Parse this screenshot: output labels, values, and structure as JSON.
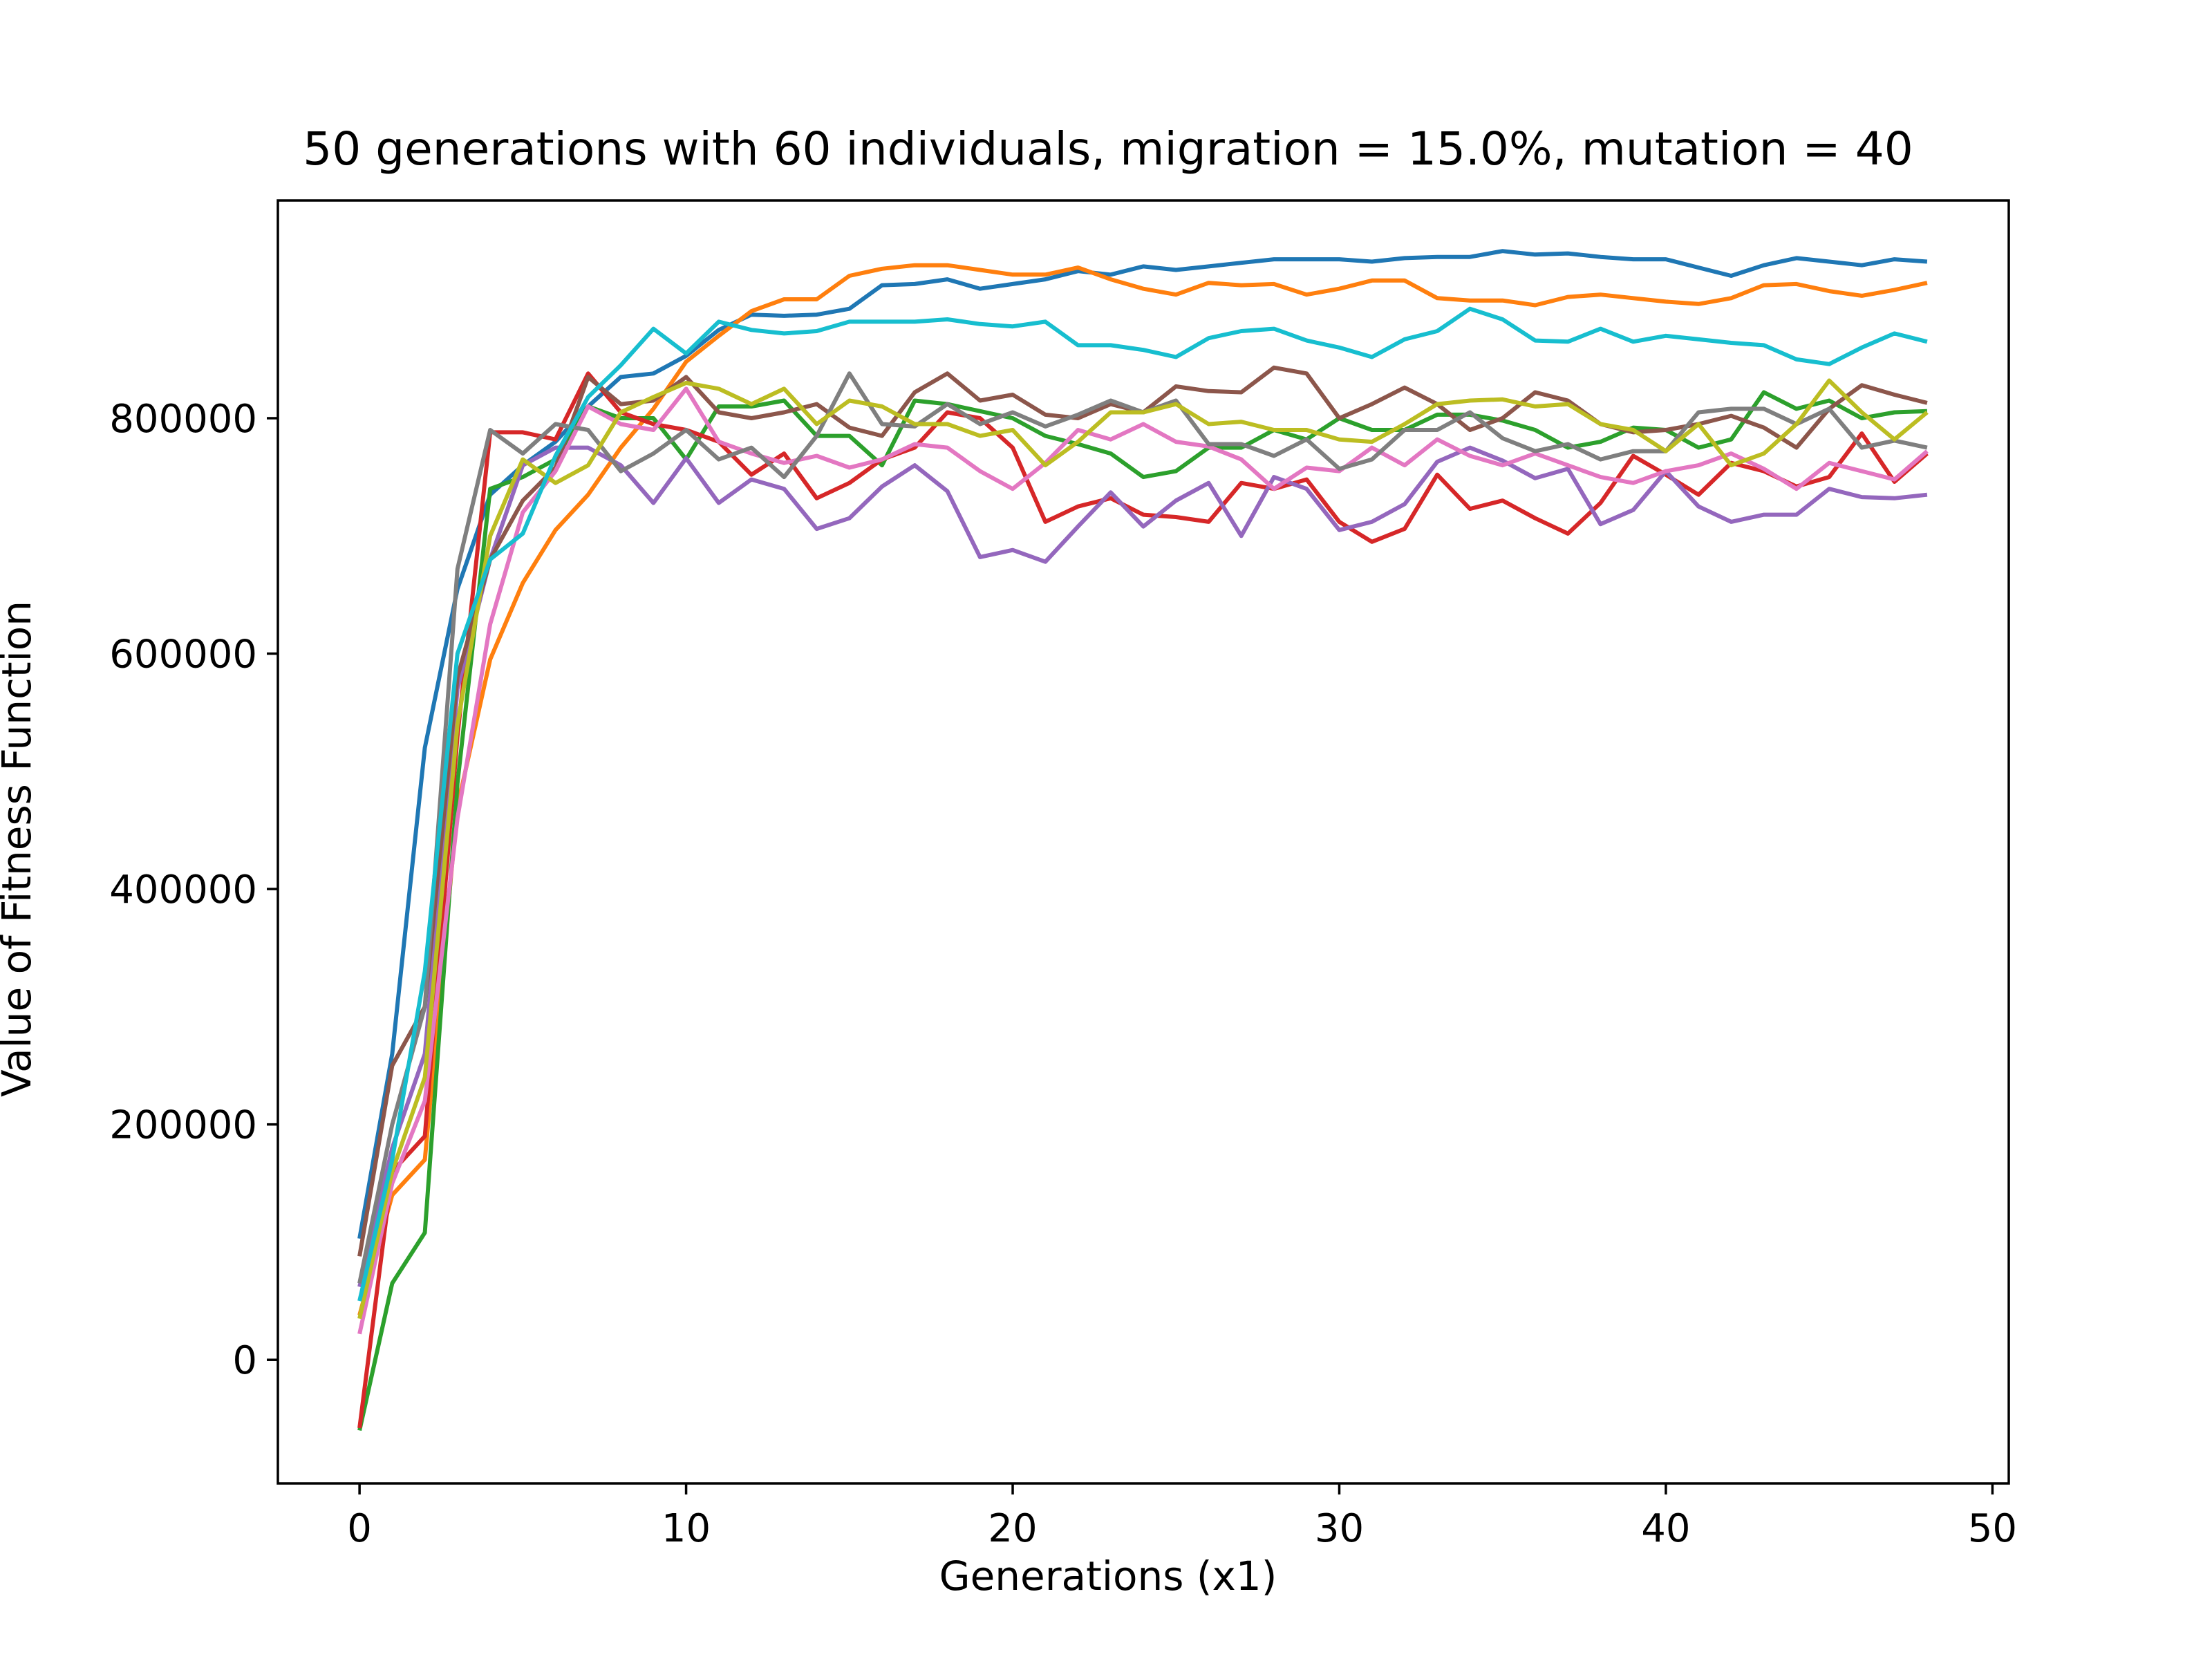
{
  "chart_data": {
    "type": "line",
    "title": "50 generations with 60 individuals, migration = 15.0%, mutation = 40",
    "xlabel": "Generations (x1)",
    "ylabel": "Value of Fitness Function",
    "xlim": [
      -2.5,
      50.5
    ],
    "ylim": [
      -105000,
      985000
    ],
    "xticks": [
      0,
      10,
      20,
      30,
      40,
      50
    ],
    "yticks": [
      0,
      200000,
      400000,
      600000,
      800000
    ],
    "grid": false,
    "legend": "none",
    "x": [
      0,
      1,
      2,
      3,
      4,
      5,
      6,
      7,
      8,
      9,
      10,
      11,
      12,
      13,
      14,
      15,
      16,
      17,
      18,
      19,
      20,
      21,
      22,
      23,
      24,
      25,
      26,
      27,
      28,
      29,
      30,
      31,
      32,
      33,
      34,
      35,
      36,
      37,
      38,
      39,
      40,
      41,
      42,
      43,
      44,
      45,
      46,
      47,
      48
    ],
    "series": [
      {
        "color": "#1f77b4",
        "values": [
          103000,
          260000,
          520000,
          655000,
          735000,
          760000,
          780000,
          810000,
          835000,
          838000,
          853000,
          875000,
          888000,
          887000,
          888000,
          893000,
          913000,
          914000,
          918000,
          910000,
          914000,
          918000,
          925000,
          922000,
          929000,
          926000,
          929000,
          932000,
          935000,
          935000,
          935000,
          933000,
          936000,
          937000,
          937000,
          942000,
          939000,
          940000,
          937000,
          935000,
          935000,
          928000,
          921000,
          930000,
          936000,
          933000,
          930000,
          935000,
          933000
        ]
      },
      {
        "color": "#ff7f0e",
        "values": [
          38000,
          140000,
          170000,
          470000,
          595000,
          660000,
          705000,
          735000,
          775000,
          808000,
          848000,
          870000,
          891000,
          901000,
          901000,
          921000,
          927000,
          930000,
          930000,
          926000,
          922000,
          922000,
          928000,
          918000,
          910000,
          905000,
          915000,
          913000,
          914000,
          905000,
          910000,
          917000,
          917000,
          902000,
          900000,
          900000,
          896000,
          903000,
          905000,
          902000,
          899000,
          897000,
          902000,
          913000,
          914000,
          908000,
          904000,
          909000,
          915000
        ]
      },
      {
        "color": "#2ca02c",
        "values": [
          -60000,
          65000,
          108000,
          490000,
          740000,
          750000,
          765000,
          810000,
          800000,
          800000,
          765000,
          810000,
          810000,
          815000,
          785000,
          785000,
          760000,
          815000,
          812000,
          806000,
          800000,
          785000,
          778000,
          770000,
          750000,
          755000,
          775000,
          775000,
          790000,
          782000,
          800000,
          790000,
          790000,
          803000,
          803000,
          798000,
          790000,
          775000,
          780000,
          792000,
          790000,
          775000,
          782000,
          822000,
          808000,
          815000,
          800000,
          805000,
          806000
        ]
      },
      {
        "color": "#d62728",
        "values": [
          -58000,
          160000,
          190000,
          530000,
          788000,
          788000,
          782000,
          838000,
          805000,
          795000,
          790000,
          780000,
          752000,
          770000,
          732000,
          745000,
          765000,
          775000,
          805000,
          800000,
          775000,
          712000,
          725000,
          732000,
          718000,
          716000,
          712000,
          745000,
          740000,
          748000,
          712000,
          695000,
          706000,
          752000,
          723000,
          730000,
          715000,
          702000,
          728000,
          768000,
          752000,
          735000,
          762000,
          755000,
          742000,
          750000,
          787000,
          746000,
          770000
        ]
      },
      {
        "color": "#9467bd",
        "values": [
          62000,
          180000,
          260000,
          570000,
          680000,
          760000,
          775000,
          775000,
          760000,
          728000,
          766000,
          728000,
          748000,
          740000,
          706000,
          715000,
          742000,
          760000,
          738000,
          682000,
          688000,
          678000,
          708000,
          737000,
          708000,
          730000,
          745000,
          700000,
          750000,
          740000,
          705000,
          712000,
          727000,
          763000,
          775000,
          764000,
          749000,
          757000,
          710000,
          722000,
          755000,
          725000,
          712000,
          718000,
          718000,
          740000,
          733000,
          732000,
          735000
        ]
      },
      {
        "color": "#8c564b",
        "values": [
          88000,
          250000,
          300000,
          580000,
          680000,
          730000,
          758000,
          835000,
          812000,
          815000,
          835000,
          805000,
          800000,
          805000,
          812000,
          792000,
          785000,
          822000,
          838000,
          815000,
          820000,
          803000,
          800000,
          812000,
          805000,
          827000,
          823000,
          822000,
          843000,
          838000,
          800000,
          812000,
          826000,
          812000,
          790000,
          800000,
          822000,
          815000,
          795000,
          788000,
          790000,
          795000,
          802000,
          792000,
          775000,
          808000,
          828000,
          820000,
          813000
        ]
      },
      {
        "color": "#e377c2",
        "values": [
          22000,
          150000,
          220000,
          460000,
          625000,
          720000,
          755000,
          810000,
          795000,
          790000,
          825000,
          780000,
          770000,
          762000,
          768000,
          758000,
          765000,
          778000,
          775000,
          755000,
          740000,
          762000,
          790000,
          782000,
          795000,
          780000,
          776000,
          765000,
          740000,
          758000,
          755000,
          775000,
          760000,
          782000,
          768000,
          760000,
          770000,
          760000,
          750000,
          745000,
          755000,
          760000,
          770000,
          757000,
          740000,
          762000,
          755000,
          748000,
          772000
        ]
      },
      {
        "color": "#7f7f7f",
        "values": [
          65000,
          200000,
          300000,
          672000,
          790000,
          770000,
          795000,
          790000,
          755000,
          770000,
          790000,
          765000,
          775000,
          750000,
          785000,
          838000,
          795000,
          793000,
          812000,
          795000,
          805000,
          793000,
          803000,
          815000,
          805000,
          815000,
          778000,
          778000,
          768000,
          782000,
          757000,
          765000,
          790000,
          790000,
          805000,
          783000,
          772000,
          778000,
          765000,
          772000,
          772000,
          805000,
          808000,
          808000,
          795000,
          808000,
          775000,
          781000,
          775000
        ]
      },
      {
        "color": "#bcbd22",
        "values": [
          35000,
          160000,
          240000,
          540000,
          700000,
          765000,
          745000,
          760000,
          805000,
          818000,
          830000,
          825000,
          812000,
          825000,
          795000,
          815000,
          810000,
          795000,
          795000,
          785000,
          790000,
          760000,
          780000,
          805000,
          805000,
          812000,
          795000,
          797000,
          790000,
          790000,
          782000,
          780000,
          795000,
          812000,
          815000,
          816000,
          810000,
          812000,
          795000,
          790000,
          772000,
          795000,
          760000,
          770000,
          795000,
          832000,
          805000,
          782000,
          805000
        ]
      },
      {
        "color": "#17becf",
        "values": [
          50000,
          170000,
          330000,
          600000,
          680000,
          702000,
          768000,
          818000,
          845000,
          876000,
          855000,
          882000,
          875000,
          872000,
          874000,
          882000,
          882000,
          882000,
          884000,
          880000,
          878000,
          882000,
          862000,
          862000,
          858000,
          852000,
          868000,
          874000,
          876000,
          866000,
          860000,
          852000,
          867000,
          874000,
          893000,
          884000,
          866000,
          865000,
          876000,
          865000,
          870000,
          867000,
          864000,
          862000,
          850000,
          846000,
          860000,
          872000,
          865000
        ]
      }
    ]
  }
}
